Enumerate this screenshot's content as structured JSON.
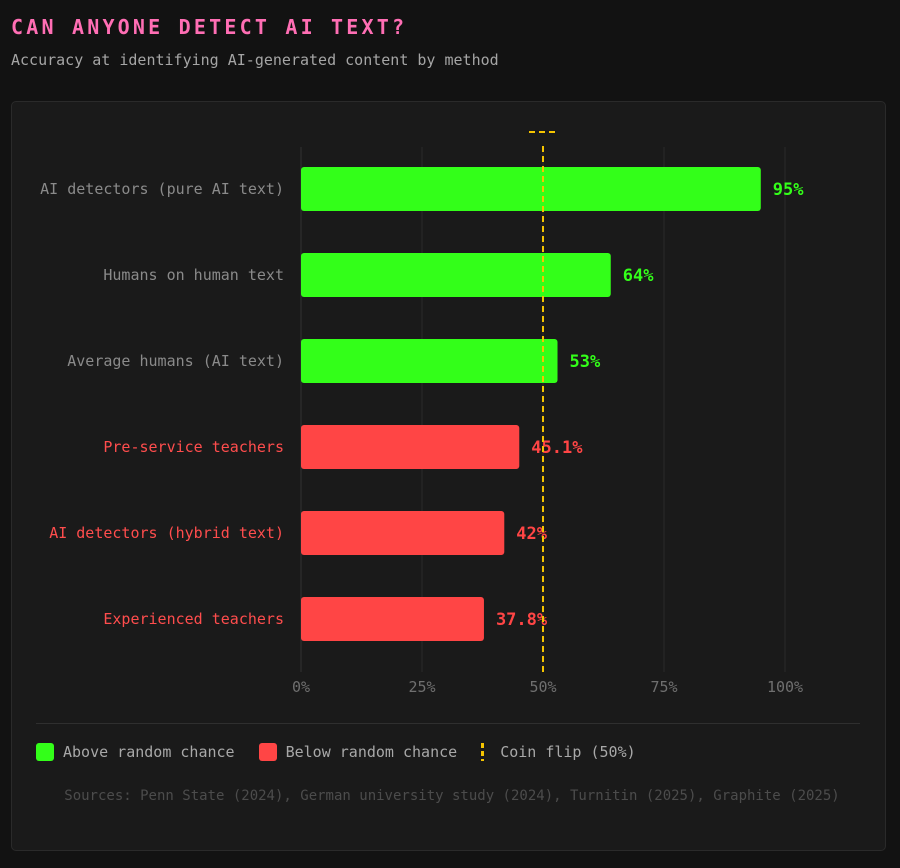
{
  "header": {
    "title": "CAN ANYONE DETECT AI TEXT?",
    "subtitle": "Accuracy at identifying AI-generated content by method"
  },
  "chart_data": {
    "type": "bar",
    "orientation": "horizontal",
    "categories": [
      "AI detectors (pure AI text)",
      "Humans on human text",
      "Average humans (AI text)",
      "Pre-service teachers",
      "AI detectors (hybrid text)",
      "Experienced teachers"
    ],
    "values": [
      95,
      64,
      53,
      45.1,
      42,
      37.8
    ],
    "value_labels": [
      "95%",
      "64%",
      "53%",
      "45.1%",
      "42%",
      "37.8%"
    ],
    "groups": [
      "above",
      "above",
      "above",
      "below",
      "below",
      "below"
    ],
    "xlim": [
      0,
      100
    ],
    "xticks": [
      "0%",
      "25%",
      "50%",
      "75%",
      "100%"
    ],
    "xtick_values": [
      0,
      25,
      50,
      75,
      100
    ],
    "reference_line": {
      "value": 50,
      "label": "Coin flip (50%)"
    },
    "grid": true
  },
  "colors": {
    "above": "#33ff19",
    "below": "#ff4545",
    "reference": "#f5c400",
    "title": "#ff6eb4"
  },
  "legend": {
    "items": [
      {
        "label": "Above random chance",
        "color": "#33ff19"
      },
      {
        "label": "Below random chance",
        "color": "#ff4545"
      },
      {
        "label": "Coin flip (50%)",
        "color": "#f5c400"
      }
    ]
  },
  "footer": {
    "sources": "Sources: Penn State (2024), German university study (2024), Turnitin (2025), Graphite (2025)"
  }
}
